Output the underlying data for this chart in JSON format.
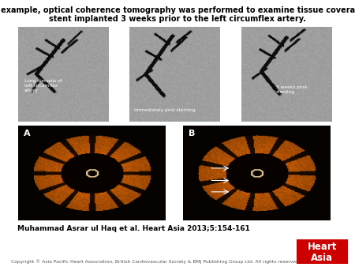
{
  "title_line1": "In this example, optical coherence tomography was performed to examine tissue coverage of a",
  "title_line2": "stent implanted 3 weeks prior to the left circumflex artery.",
  "caption": "Muhammad Asrar ul Haq et al. Heart Asia 2013;5:154-161",
  "copyright": "Copyright © Asia Pacific Heart Association, British Cardiovascular Society & BMJ Publishing Group Ltd. All rights reserved",
  "logo_text1": "Heart",
  "logo_text2": "Asia",
  "logo_bg": "#cc0000",
  "bg_color": "#ffffff",
  "label_A": "A",
  "label_B": "B",
  "angio_label1": "Long stenosis of\nleft circumflex\nartery",
  "angio_label2": "Immediately post stenting",
  "angio_label3": "3 weeks post-\nstenting",
  "title_fontsize": 7.0,
  "caption_fontsize": 6.5,
  "copyright_fontsize": 4.3,
  "logo_fontsize": 8.5,
  "label_fontsize": 8.0,
  "angio_text_fontsize": 4.2
}
